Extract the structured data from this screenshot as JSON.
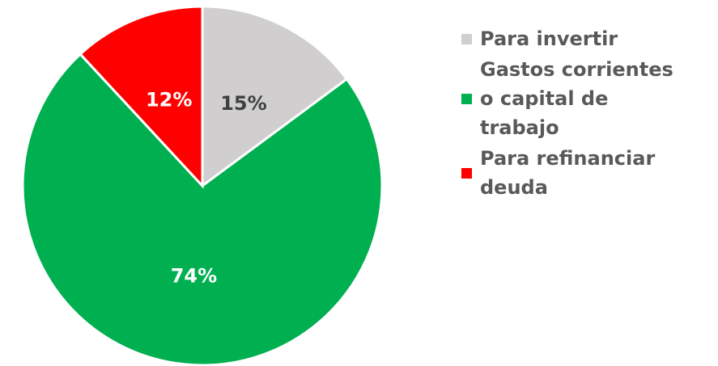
{
  "chart_data": {
    "type": "pie",
    "categories": [
      "Para invertir",
      "Gastos corrientes o capital de trabajo",
      "Para refinanciar deuda"
    ],
    "values": [
      15,
      74,
      12
    ],
    "value_labels": [
      "15%",
      "74%",
      "12%"
    ],
    "colors": [
      "#d0cece",
      "#00b050",
      "#ff0000"
    ],
    "legend": "right"
  }
}
